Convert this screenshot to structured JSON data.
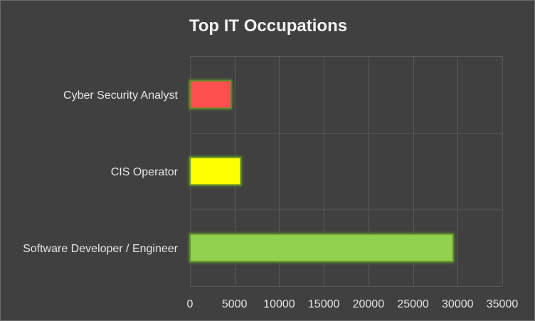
{
  "chart_data": {
    "type": "bar",
    "orientation": "horizontal",
    "title": "Top IT Occupations",
    "xlabel": "",
    "ylabel": "",
    "categories": [
      "Cyber Security Analyst",
      "CIS Operator",
      "Software Developer / Engineer"
    ],
    "values": [
      4600,
      5700,
      29500
    ],
    "colors": [
      "#ff5050",
      "#ffff00",
      "#92d050"
    ],
    "xlim": [
      0,
      35000
    ],
    "xticks": [
      "0",
      "5000",
      "10000",
      "15000",
      "20000",
      "25000",
      "30000",
      "35000"
    ],
    "grid": true,
    "legend": "none"
  }
}
